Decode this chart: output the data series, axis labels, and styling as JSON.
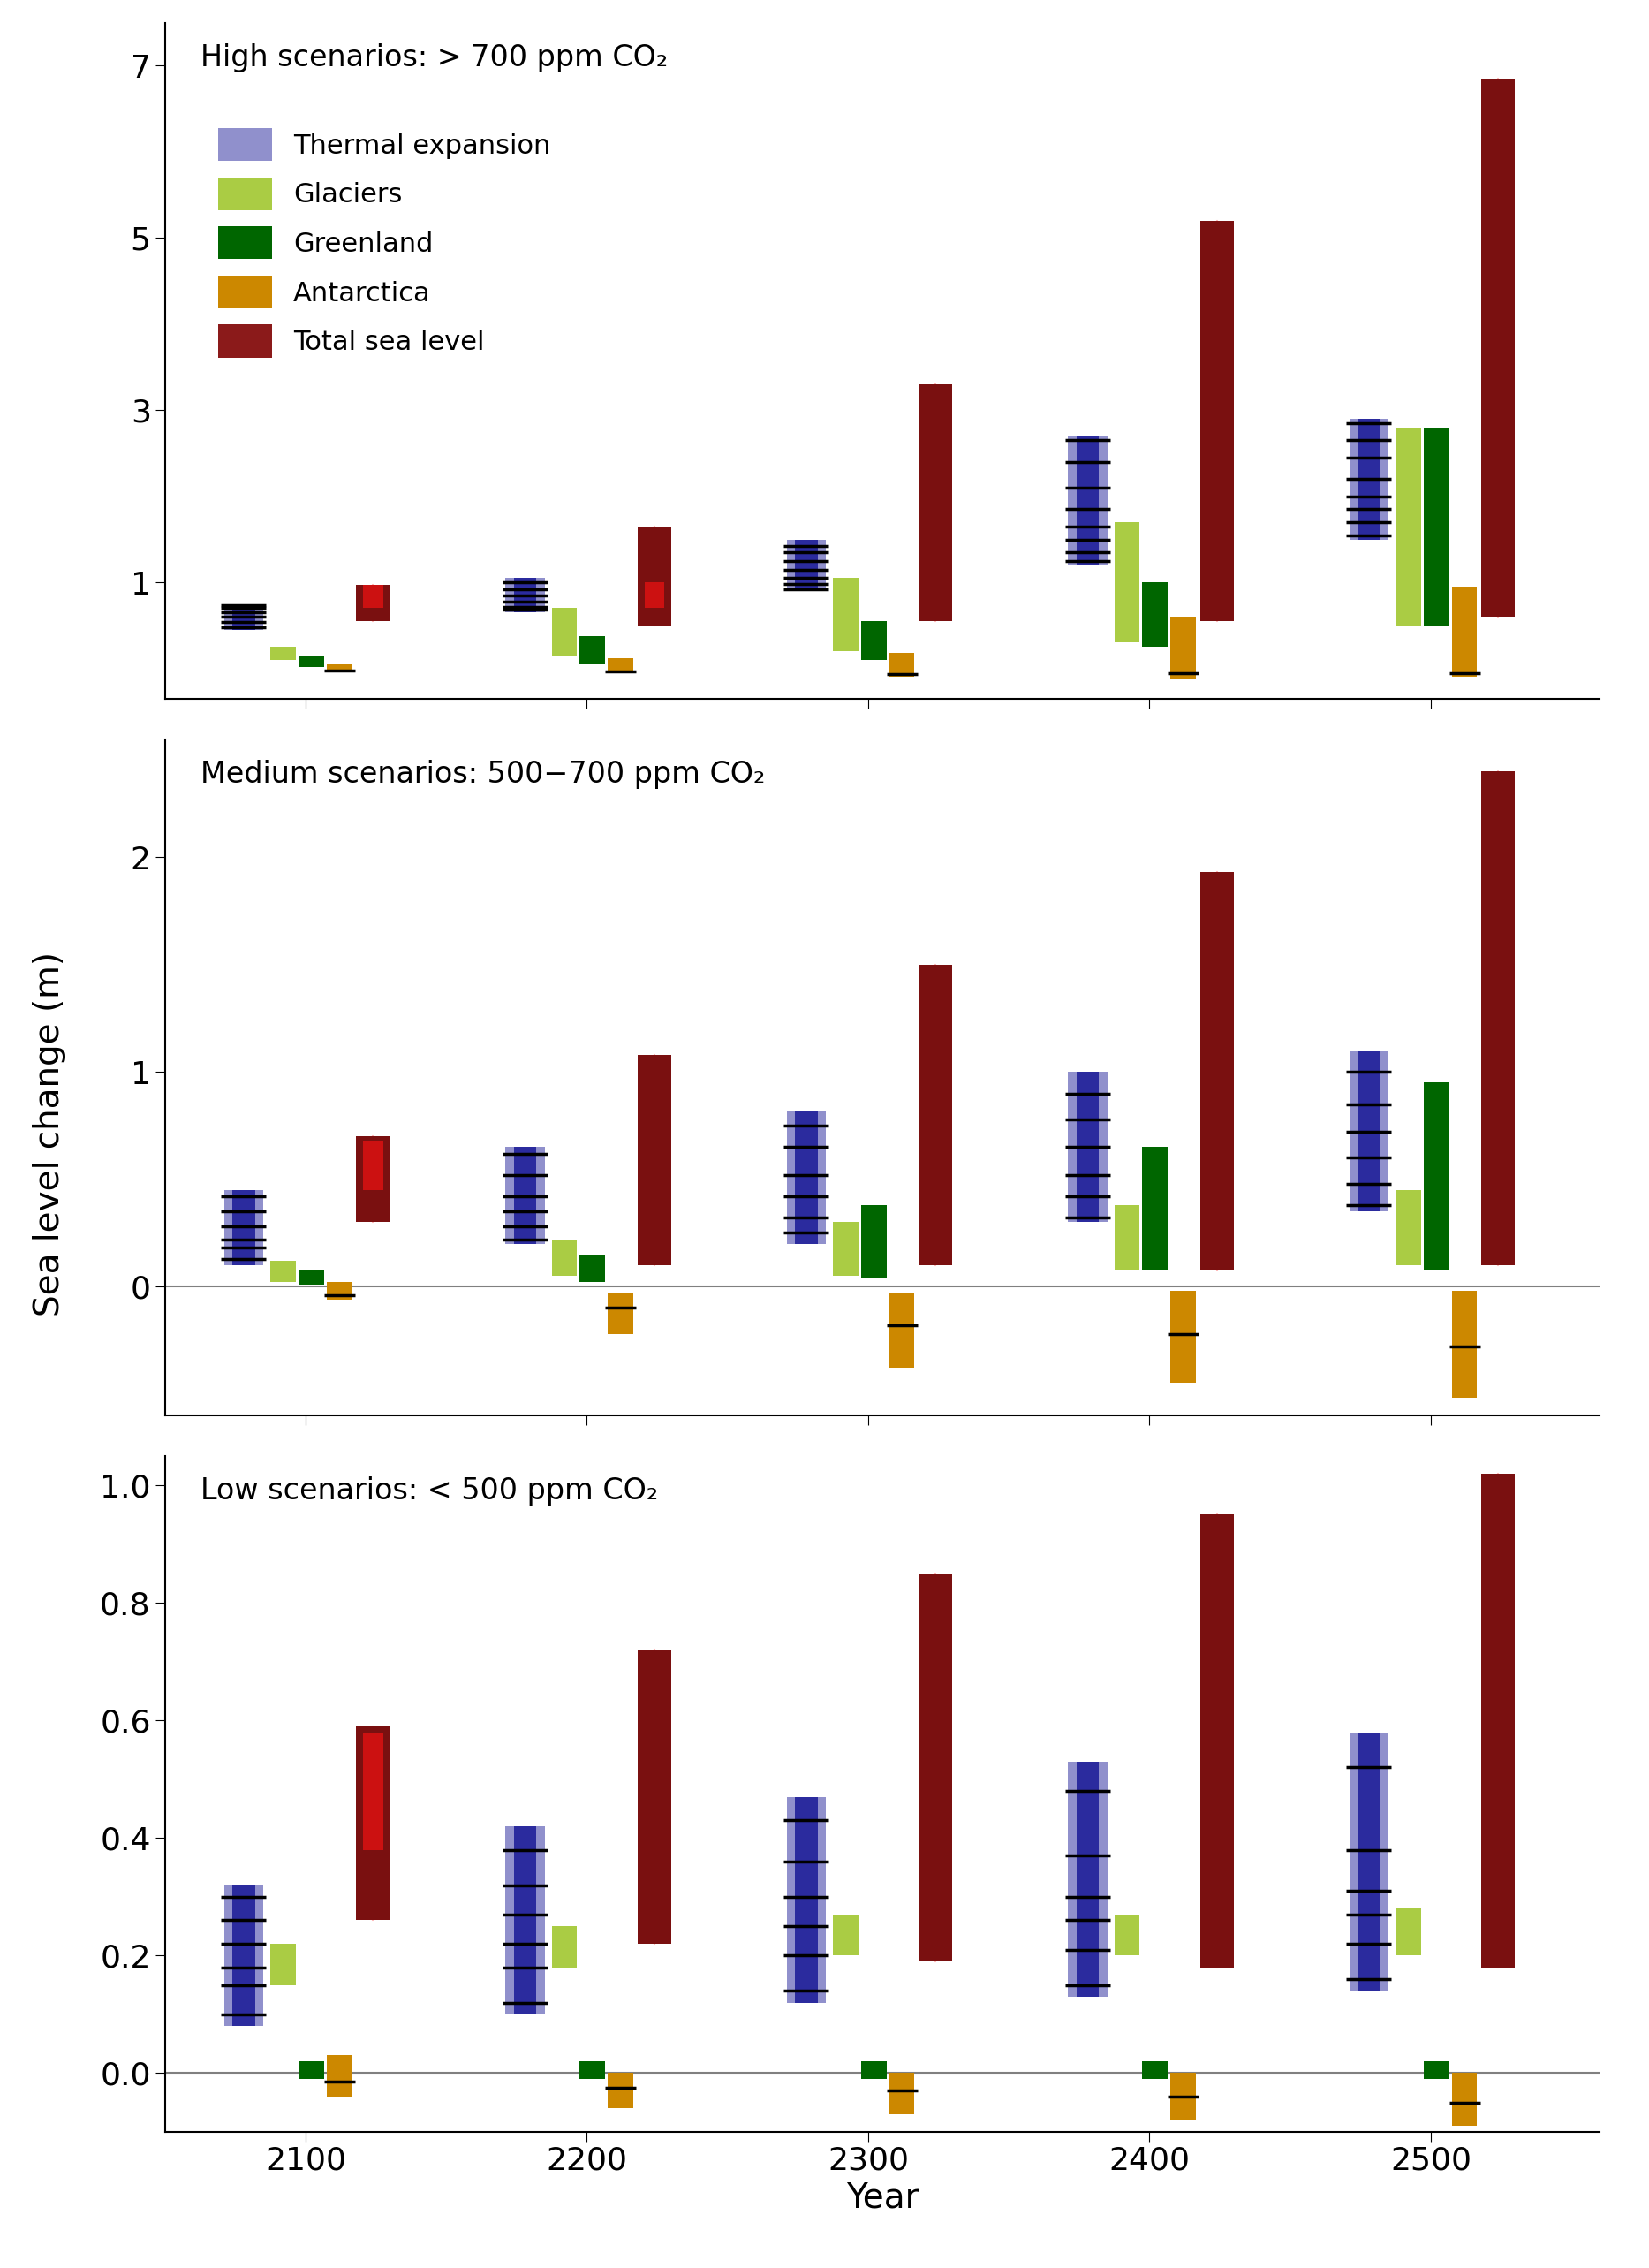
{
  "panels": [
    {
      "title": "High scenarios: > 700 ppm CO₂",
      "ylim": [
        -0.35,
        7.5
      ],
      "yticks": [
        1,
        3,
        5,
        7
      ],
      "hline": null,
      "years": [
        2100,
        2200,
        2300,
        2400,
        2500
      ],
      "thermal_ranges": [
        [
          0.45,
          0.75
        ],
        [
          0.65,
          1.05
        ],
        [
          0.9,
          1.5
        ],
        [
          1.2,
          2.7
        ],
        [
          1.5,
          2.9
        ]
      ],
      "thermal_ticks": [
        [
          0.48,
          0.54,
          0.6,
          0.65,
          0.7,
          0.74
        ],
        [
          0.68,
          0.72,
          0.78,
          0.85,
          0.92,
          1.0
        ],
        [
          0.92,
          0.98,
          1.05,
          1.15,
          1.25,
          1.35,
          1.42
        ],
        [
          1.25,
          1.35,
          1.5,
          1.65,
          1.85,
          2.1,
          2.4,
          2.65
        ],
        [
          1.55,
          1.7,
          1.85,
          2.0,
          2.2,
          2.45,
          2.65,
          2.85
        ]
      ],
      "glaciers_ranges": [
        [
          0.1,
          0.25
        ],
        [
          0.15,
          0.7
        ],
        [
          0.2,
          1.05
        ],
        [
          0.3,
          1.7
        ],
        [
          0.5,
          2.8
        ]
      ],
      "greenland_ranges": [
        [
          0.02,
          0.15
        ],
        [
          0.05,
          0.38
        ],
        [
          0.1,
          0.55
        ],
        [
          0.25,
          1.0
        ],
        [
          0.5,
          2.8
        ]
      ],
      "antarctica_ranges": [
        [
          -0.04,
          0.05
        ],
        [
          -0.05,
          0.12
        ],
        [
          -0.1,
          0.18
        ],
        [
          -0.12,
          0.6
        ],
        [
          -0.1,
          0.95
        ]
      ],
      "antarctica_ticks": [
        [
          -0.02
        ],
        [
          -0.03
        ],
        [
          -0.06
        ],
        [
          -0.05
        ],
        [
          -0.05
        ]
      ],
      "total_ranges": [
        [
          0.55,
          0.97
        ],
        [
          0.5,
          1.65
        ],
        [
          0.55,
          3.3
        ],
        [
          0.55,
          5.2
        ],
        [
          0.6,
          6.85
        ]
      ],
      "total_red_ranges": [
        [
          0.7,
          0.97
        ],
        [
          0.7,
          1.0
        ],
        null,
        null,
        null
      ]
    },
    {
      "title": "Medium scenarios: 500−700 ppm CO₂",
      "ylim": [
        -0.6,
        2.55
      ],
      "yticks": [
        0,
        1,
        2
      ],
      "hline": 0.0,
      "years": [
        2100,
        2200,
        2300,
        2400,
        2500
      ],
      "thermal_ranges": [
        [
          0.1,
          0.45
        ],
        [
          0.2,
          0.65
        ],
        [
          0.2,
          0.82
        ],
        [
          0.3,
          1.0
        ],
        [
          0.35,
          1.1
        ]
      ],
      "thermal_ticks": [
        [
          0.13,
          0.18,
          0.22,
          0.28,
          0.35,
          0.42
        ],
        [
          0.22,
          0.28,
          0.35,
          0.42,
          0.52,
          0.62
        ],
        [
          0.25,
          0.32,
          0.42,
          0.52,
          0.65,
          0.75
        ],
        [
          0.32,
          0.42,
          0.52,
          0.65,
          0.78,
          0.9
        ],
        [
          0.38,
          0.48,
          0.6,
          0.72,
          0.85,
          1.0
        ]
      ],
      "glaciers_ranges": [
        [
          0.02,
          0.12
        ],
        [
          0.05,
          0.22
        ],
        [
          0.05,
          0.3
        ],
        [
          0.08,
          0.38
        ],
        [
          0.1,
          0.45
        ]
      ],
      "greenland_ranges": [
        [
          0.01,
          0.08
        ],
        [
          0.02,
          0.15
        ],
        [
          0.04,
          0.38
        ],
        [
          0.08,
          0.65
        ],
        [
          0.08,
          0.95
        ]
      ],
      "antarctica_ranges": [
        [
          -0.06,
          0.02
        ],
        [
          -0.22,
          -0.03
        ],
        [
          -0.38,
          -0.03
        ],
        [
          -0.45,
          -0.02
        ],
        [
          -0.52,
          -0.02
        ]
      ],
      "antarctica_ticks": [
        [
          -0.04
        ],
        [
          -0.1
        ],
        [
          -0.18
        ],
        [
          -0.22
        ],
        [
          -0.28
        ]
      ],
      "total_ranges": [
        [
          0.3,
          0.7
        ],
        [
          0.1,
          1.08
        ],
        [
          0.1,
          1.5
        ],
        [
          0.08,
          1.93
        ],
        [
          0.1,
          2.4
        ]
      ],
      "total_red_ranges": [
        [
          0.45,
          0.68
        ],
        null,
        null,
        null,
        null
      ]
    },
    {
      "title": "Low scenarios: < 500 ppm CO₂",
      "ylim": [
        -0.1,
        1.05
      ],
      "yticks": [
        0,
        0.2,
        0.4,
        0.6,
        0.8,
        1.0
      ],
      "hline": 0.0,
      "years": [
        2100,
        2200,
        2300,
        2400,
        2500
      ],
      "thermal_ranges": [
        [
          0.08,
          0.32
        ],
        [
          0.1,
          0.42
        ],
        [
          0.12,
          0.47
        ],
        [
          0.13,
          0.53
        ],
        [
          0.14,
          0.58
        ]
      ],
      "thermal_ticks": [
        [
          0.1,
          0.15,
          0.18,
          0.22,
          0.26,
          0.3
        ],
        [
          0.12,
          0.18,
          0.22,
          0.27,
          0.32,
          0.38
        ],
        [
          0.14,
          0.2,
          0.25,
          0.3,
          0.36,
          0.43
        ],
        [
          0.15,
          0.21,
          0.26,
          0.3,
          0.37,
          0.48
        ],
        [
          0.16,
          0.22,
          0.27,
          0.31,
          0.38,
          0.52
        ]
      ],
      "glaciers_ranges": [
        [
          0.15,
          0.22
        ],
        [
          0.18,
          0.25
        ],
        [
          0.2,
          0.27
        ],
        [
          0.2,
          0.27
        ],
        [
          0.2,
          0.28
        ]
      ],
      "greenland_ranges": [
        [
          -0.01,
          0.02
        ],
        [
          -0.01,
          0.02
        ],
        [
          -0.01,
          0.02
        ],
        [
          -0.01,
          0.02
        ],
        [
          -0.01,
          0.02
        ]
      ],
      "antarctica_ranges": [
        [
          -0.04,
          0.03
        ],
        [
          -0.06,
          0.0
        ],
        [
          -0.07,
          0.0
        ],
        [
          -0.08,
          0.0
        ],
        [
          -0.09,
          0.0
        ]
      ],
      "antarctica_ticks": [
        [
          -0.015
        ],
        [
          -0.025
        ],
        [
          -0.03
        ],
        [
          -0.04
        ],
        [
          -0.05
        ]
      ],
      "total_ranges": [
        [
          0.26,
          0.59
        ],
        [
          0.22,
          0.72
        ],
        [
          0.19,
          0.85
        ],
        [
          0.18,
          0.95
        ],
        [
          0.18,
          1.02
        ]
      ],
      "total_red_ranges": [
        [
          0.38,
          0.58
        ],
        null,
        null,
        null,
        null
      ]
    }
  ],
  "legend_labels": [
    "Thermal expansion",
    "Glaciers",
    "Greenland",
    "Antarctica",
    "Total sea level"
  ],
  "legend_colors": [
    "#3333aa",
    "#aacc44",
    "#006600",
    "#cc8800",
    "#8b1a1a"
  ],
  "legend_light_colors": [
    "#9999cc",
    "#aacc44",
    "#006600",
    "#cc8800",
    "#8b1a1a"
  ],
  "ylabel": "Sea level change (m)",
  "xlabel": "Year",
  "colors": {
    "thermal_dark": "#2b2b9e",
    "thermal_light": "#9090cc",
    "glaciers": "#aacc44",
    "greenland": "#006600",
    "antarctica": "#cc8800",
    "total_dark": "#7a1010",
    "total_red": "#cc1111",
    "total_thin_line": "#ffaaaa"
  }
}
